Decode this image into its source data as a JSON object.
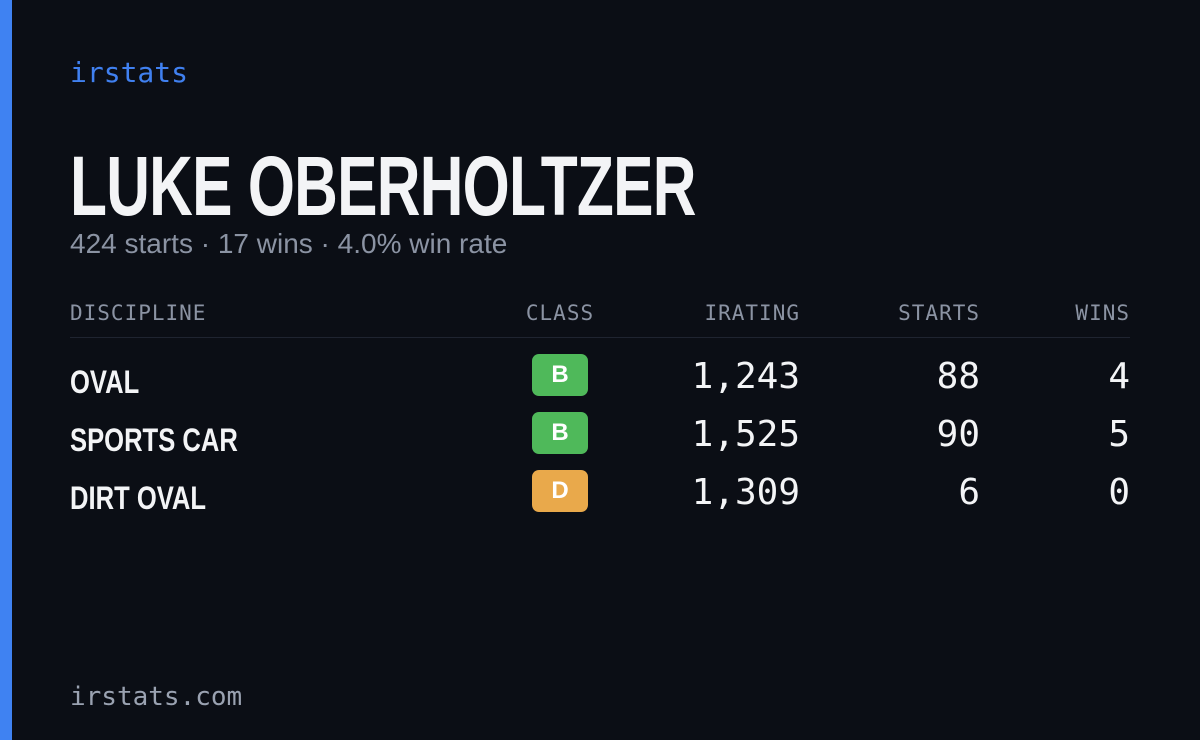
{
  "brand": "irstats",
  "driver": {
    "name": "LUKE OBERHOLTZER",
    "summary": "424 starts · 17 wins · 4.0% win rate"
  },
  "table": {
    "headers": [
      "DISCIPLINE",
      "CLASS",
      "IRATING",
      "STARTS",
      "WINS"
    ],
    "rows": [
      {
        "discipline": "OVAL",
        "class": "B",
        "class_color": "#4fb95a",
        "irating": "1,243",
        "starts": "88",
        "wins": "4"
      },
      {
        "discipline": "SPORTS CAR",
        "class": "B",
        "class_color": "#4fb95a",
        "irating": "1,525",
        "starts": "90",
        "wins": "5"
      },
      {
        "discipline": "DIRT OVAL",
        "class": "D",
        "class_color": "#e9a94b",
        "irating": "1,309",
        "starts": "6",
        "wins": "0"
      }
    ]
  },
  "footer": "irstats.com"
}
